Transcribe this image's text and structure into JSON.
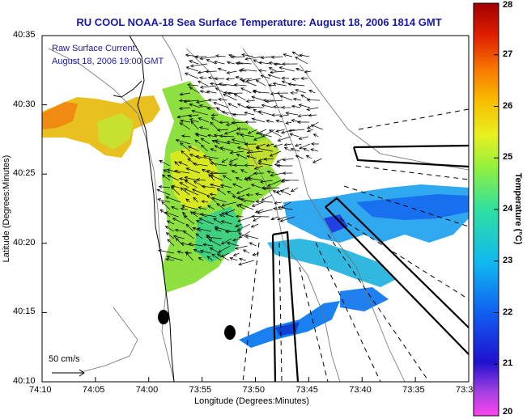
{
  "title": "RU COOL  NOAA-18  Sea Surface Temperature:  August 18, 2006 1814 GMT",
  "legend": {
    "line1": "Raw Surface Current:",
    "line2": "August 18, 2006 19:00 GMT"
  },
  "scale_arrow_label": "50 cm/s",
  "axes": {
    "xlabel": "Longitude (Degrees:Minutes)",
    "ylabel": "Latitude (Degrees:Minutes)",
    "xticks": [
      "74:10",
      "74:05",
      "74:00",
      "73:55",
      "73:50",
      "73:45",
      "73:40",
      "73:35",
      "73:3"
    ],
    "yticks": [
      "40:35",
      "40:30",
      "40:25",
      "40:20",
      "40:15",
      "40:10"
    ]
  },
  "colorbar": {
    "label": "Temperature (°C)",
    "ticks": [
      "28",
      "27",
      "26",
      "25",
      "24",
      "23",
      "22",
      "21",
      "20"
    ],
    "min": 20,
    "max": 28
  }
}
